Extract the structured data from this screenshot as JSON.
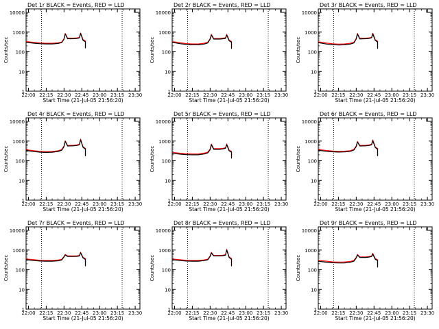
{
  "figure": {
    "xlabel": "Start Time (21-Jul-05 21:56:20)",
    "ylabel": "Counts/sec",
    "x_ticks": [
      "22:00",
      "22:15",
      "22:30",
      "22:45",
      "23:00",
      "23:15",
      "23:30"
    ],
    "y_ticks": [
      "1",
      "10",
      "100",
      "1000",
      "10000"
    ],
    "colors": {
      "events": "#000000",
      "lld": "#ff0000",
      "frame": "#000000"
    }
  },
  "chart_data": [
    {
      "type": "line",
      "title": "Det 1r BLACK = Events, RED = LLD",
      "x": [
        "21:58",
        "22:05",
        "22:10",
        "22:15",
        "22:20",
        "22:25",
        "22:28",
        "22:30",
        "22:31",
        "22:33",
        "22:38",
        "22:41",
        "22:43",
        "22:44",
        "22:46",
        "22:48",
        "22:48"
      ],
      "series": [
        {
          "name": "Events",
          "values": [
            300,
            270,
            255,
            250,
            250,
            265,
            290,
            430,
            800,
            460,
            460,
            480,
            500,
            850,
            380,
            320,
            150
          ]
        },
        {
          "name": "LLD",
          "values": [
            330,
            300,
            280,
            270,
            270,
            285,
            310,
            460,
            850,
            490,
            490,
            510,
            540,
            900,
            420,
            350,
            170
          ]
        }
      ],
      "ylim": [
        1,
        15000
      ],
      "xlim": [
        "21:58",
        "23:34"
      ],
      "vlines": [
        "22:11",
        "23:19"
      ],
      "log_y": true
    },
    {
      "type": "line",
      "title": "Det 2r BLACK = Events, RED = LLD",
      "x": [
        "21:58",
        "22:05",
        "22:10",
        "22:15",
        "22:20",
        "22:25",
        "22:28",
        "22:30",
        "22:31",
        "22:33",
        "22:38",
        "22:41",
        "22:43",
        "22:44",
        "22:46",
        "22:48",
        "22:48"
      ],
      "series": [
        {
          "name": "Events",
          "values": [
            300,
            255,
            235,
            225,
            225,
            245,
            280,
            430,
            700,
            440,
            440,
            460,
            480,
            700,
            360,
            300,
            140
          ]
        },
        {
          "name": "LLD",
          "values": [
            330,
            285,
            260,
            250,
            250,
            270,
            305,
            460,
            760,
            470,
            470,
            490,
            520,
            760,
            400,
            330,
            160
          ]
        }
      ],
      "ylim": [
        1,
        15000
      ],
      "xlim": [
        "21:58",
        "23:34"
      ],
      "vlines": [
        "22:11",
        "23:19"
      ],
      "log_y": true
    },
    {
      "type": "line",
      "title": "Det 3r BLACK = Events, RED = LLD",
      "x": [
        "21:58",
        "22:05",
        "22:10",
        "22:15",
        "22:20",
        "22:25",
        "22:28",
        "22:30",
        "22:31",
        "22:33",
        "22:38",
        "22:41",
        "22:43",
        "22:44",
        "22:46",
        "22:48",
        "22:48"
      ],
      "series": [
        {
          "name": "Events",
          "values": [
            290,
            245,
            230,
            220,
            225,
            245,
            280,
            440,
            800,
            450,
            460,
            480,
            520,
            820,
            380,
            310,
            140
          ]
        },
        {
          "name": "LLD",
          "values": [
            320,
            275,
            255,
            245,
            250,
            270,
            305,
            470,
            860,
            480,
            490,
            510,
            550,
            880,
            410,
            340,
            160
          ]
        }
      ],
      "ylim": [
        1,
        15000
      ],
      "xlim": [
        "21:58",
        "23:34"
      ],
      "vlines": [
        "22:11",
        "23:19"
      ],
      "log_y": true
    },
    {
      "type": "line",
      "title": "Det 4r BLACK = Events, RED = LLD",
      "x": [
        "21:58",
        "22:05",
        "22:10",
        "22:15",
        "22:20",
        "22:25",
        "22:28",
        "22:30",
        "22:31",
        "22:33",
        "22:38",
        "22:41",
        "22:43",
        "22:44",
        "22:46",
        "22:48",
        "22:48"
      ],
      "series": [
        {
          "name": "Events",
          "values": [
            330,
            290,
            270,
            265,
            270,
            295,
            340,
            520,
            950,
            560,
            570,
            600,
            650,
            1150,
            480,
            390,
            170
          ]
        },
        {
          "name": "LLD",
          "values": [
            360,
            320,
            300,
            290,
            295,
            320,
            370,
            560,
            1020,
            600,
            610,
            640,
            700,
            1250,
            520,
            420,
            190
          ]
        }
      ],
      "ylim": [
        1,
        15000
      ],
      "xlim": [
        "21:58",
        "23:34"
      ],
      "vlines": [
        "22:11",
        "23:19"
      ],
      "log_y": true
    },
    {
      "type": "line",
      "title": "Det 5r BLACK = Events, RED = LLD",
      "x": [
        "21:58",
        "22:05",
        "22:10",
        "22:15",
        "22:20",
        "22:25",
        "22:28",
        "22:30",
        "22:31",
        "22:33",
        "22:38",
        "22:41",
        "22:43",
        "22:44",
        "22:46",
        "22:48",
        "22:48"
      ],
      "series": [
        {
          "name": "Events",
          "values": [
            240,
            215,
            205,
            200,
            200,
            220,
            250,
            360,
            650,
            380,
            380,
            400,
            430,
            650,
            320,
            270,
            130
          ]
        },
        {
          "name": "LLD",
          "values": [
            265,
            240,
            228,
            222,
            222,
            243,
            275,
            395,
            700,
            410,
            410,
            430,
            465,
            710,
            350,
            295,
            150
          ]
        }
      ],
      "ylim": [
        1,
        15000
      ],
      "xlim": [
        "21:58",
        "23:34"
      ],
      "vlines": [
        "22:11",
        "23:19"
      ],
      "log_y": true
    },
    {
      "type": "line",
      "title": "Det 6r BLACK = Events, RED = LLD",
      "x": [
        "21:58",
        "22:05",
        "22:10",
        "22:15",
        "22:20",
        "22:25",
        "22:28",
        "22:30",
        "22:31",
        "22:33",
        "22:38",
        "22:41",
        "22:43",
        "22:44",
        "22:46",
        "22:48",
        "22:48"
      ],
      "series": [
        {
          "name": "Events",
          "values": [
            340,
            300,
            285,
            275,
            280,
            300,
            350,
            520,
            900,
            560,
            570,
            600,
            650,
            1050,
            470,
            380,
            170
          ]
        },
        {
          "name": "LLD",
          "values": [
            370,
            330,
            310,
            300,
            305,
            325,
            380,
            560,
            960,
            600,
            610,
            640,
            700,
            1150,
            510,
            410,
            190
          ]
        }
      ],
      "ylim": [
        1,
        15000
      ],
      "xlim": [
        "21:58",
        "23:34"
      ],
      "vlines": [
        "22:11",
        "23:19"
      ],
      "log_y": true
    },
    {
      "type": "line",
      "title": "Det 7r BLACK = Events, RED = LLD",
      "x": [
        "21:58",
        "22:05",
        "22:10",
        "22:15",
        "22:20",
        "22:25",
        "22:28",
        "22:30",
        "22:31",
        "22:33",
        "22:38",
        "22:41",
        "22:43",
        "22:44",
        "22:46",
        "22:48",
        "22:48"
      ],
      "series": [
        {
          "name": "Events",
          "values": [
            320,
            290,
            275,
            270,
            270,
            285,
            310,
            440,
            560,
            470,
            470,
            480,
            500,
            720,
            400,
            330,
            150
          ]
        },
        {
          "name": "LLD",
          "values": [
            350,
            320,
            300,
            295,
            295,
            310,
            335,
            470,
            600,
            500,
            500,
            510,
            535,
            770,
            430,
            360,
            170
          ]
        }
      ],
      "ylim": [
        1,
        15000
      ],
      "xlim": [
        "21:58",
        "23:34"
      ],
      "vlines": [
        "22:11",
        "23:19"
      ],
      "log_y": true
    },
    {
      "type": "line",
      "title": "Det 8r BLACK = Events, RED = LLD",
      "x": [
        "21:58",
        "22:05",
        "22:10",
        "22:15",
        "22:20",
        "22:25",
        "22:28",
        "22:30",
        "22:31",
        "22:33",
        "22:38",
        "22:41",
        "22:43",
        "22:44",
        "22:46",
        "22:48",
        "22:48"
      ],
      "series": [
        {
          "name": "Events",
          "values": [
            320,
            290,
            275,
            270,
            270,
            290,
            320,
            470,
            700,
            500,
            500,
            520,
            550,
            1000,
            420,
            340,
            150
          ]
        },
        {
          "name": "LLD",
          "values": [
            350,
            320,
            300,
            295,
            295,
            315,
            345,
            500,
            760,
            530,
            530,
            550,
            590,
            1080,
            455,
            370,
            170
          ]
        }
      ],
      "ylim": [
        1,
        15000
      ],
      "xlim": [
        "21:58",
        "23:34"
      ],
      "vlines": [
        "22:11",
        "23:19"
      ],
      "log_y": true
    },
    {
      "type": "line",
      "title": "Det 9r BLACK = Events, RED = LLD",
      "x": [
        "21:58",
        "22:05",
        "22:10",
        "22:15",
        "22:20",
        "22:25",
        "22:28",
        "22:30",
        "22:31",
        "22:33",
        "22:38",
        "22:41",
        "22:43",
        "22:44",
        "22:46",
        "22:48",
        "22:48"
      ],
      "series": [
        {
          "name": "Events",
          "values": [
            270,
            240,
            225,
            220,
            222,
            240,
            270,
            390,
            560,
            420,
            420,
            440,
            470,
            620,
            340,
            290,
            130
          ]
        },
        {
          "name": "LLD",
          "values": [
            300,
            270,
            250,
            245,
            247,
            265,
            297,
            425,
            600,
            450,
            450,
            470,
            505,
            680,
            370,
            315,
            150
          ]
        }
      ],
      "ylim": [
        1,
        15000
      ],
      "xlim": [
        "21:58",
        "23:34"
      ],
      "vlines": [
        "22:11",
        "23:19"
      ],
      "log_y": true
    }
  ]
}
